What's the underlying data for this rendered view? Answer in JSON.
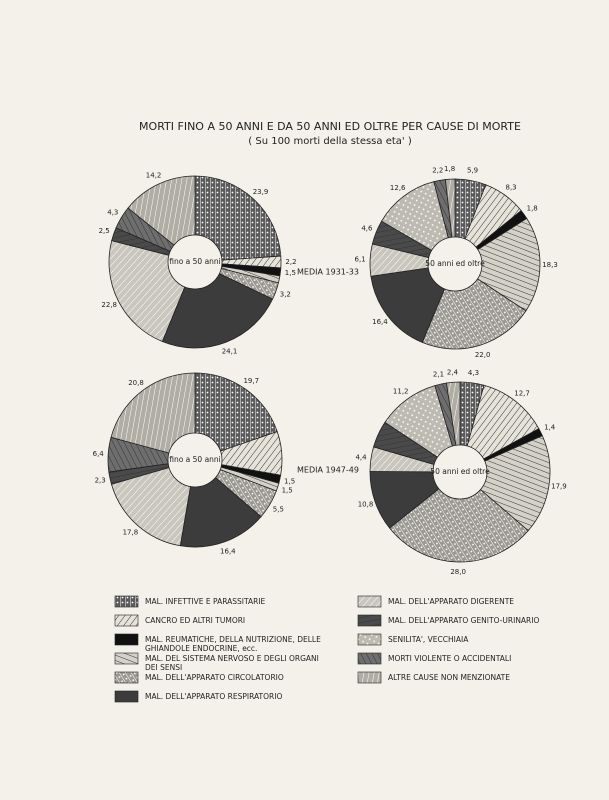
{
  "chart_data": {
    "type": "pie",
    "title": "MORTI FINO A 50 ANNI E DA 50 ANNI ED OLTRE PER CAUSE DI MORTE",
    "subtitle": "( Su 100 morti della stessa eta' )",
    "categories": [
      "fino a 50 anni",
      "50 anni ed oltre",
      "fino a 50 anni",
      "50 anni ed oltre"
    ],
    "periods": [
      "MEDIA 1931-33",
      "MEDIA 1947-49"
    ],
    "series": [
      {
        "name": "MAL. INFETTIVE E PARASSITARIE",
        "color": "#5a5a5a",
        "values": [
          23.9,
          5.9,
          19.7,
          4.3
        ],
        "value_labels": [
          "23,9",
          "5,9",
          "19,7",
          "4,3"
        ]
      },
      {
        "name": "CANCRO ED ALTRI TUMORI",
        "color": "#e6e3da",
        "values": [
          2.2,
          8.3,
          8.1,
          12.7
        ],
        "value_labels": [
          "2,2",
          "8,3",
          null,
          "12,7"
        ]
      },
      {
        "name": "MAL. REUMATICHE, DELLA NUTRIZIONE, DELLE GHIANDOLE ENDOCRINE, ecc.",
        "color": "#111111",
        "values": [
          1.5,
          1.8,
          1.5,
          1.4
        ],
        "value_labels": [
          "1,5",
          "1,8",
          "1,5",
          "1,4"
        ]
      },
      {
        "name": "MAL. DEL SISTEMA NERVOSO E DEGLI ORGANI DEI SENSI",
        "color": "#d4d1c8",
        "values": [
          1.3,
          18.3,
          1.5,
          17.9
        ],
        "value_labels": [
          null,
          "18,3",
          "1,5",
          "17,9"
        ]
      },
      {
        "name": "MAL. DELL'APPARATO CIRCOLATORIO",
        "color": "#9a9890",
        "values": [
          3.2,
          22.0,
          5.5,
          28.0
        ],
        "value_labels": [
          "3,2",
          "22,0",
          "5,5",
          "28,0"
        ]
      },
      {
        "name": "MAL. DELL'APPARATO RESPIRATORIO",
        "color": "#3c3c3c",
        "values": [
          24.1,
          16.4,
          16.4,
          10.8
        ],
        "value_labels": [
          "24,1",
          "16,4",
          "16,4",
          "10,8"
        ]
      },
      {
        "name": "MAL. DELL'APPARATO DIGERENTE",
        "color": "#c9c6bd",
        "values": [
          22.8,
          6.1,
          17.8,
          4.4
        ],
        "value_labels": [
          "22,8",
          "6,1",
          "17,8",
          "4,4"
        ]
      },
      {
        "name": "MAL. DELL'APPARATO GENITO-URINARIO",
        "color": "#4a4a4a",
        "values": [
          2.5,
          4.6,
          2.3,
          4.8
        ],
        "value_labels": [
          "2,5",
          "4,6",
          "2,3",
          null
        ]
      },
      {
        "name": "SENILITA', VECCHIAIA",
        "color": "#bdbab1",
        "values": [
          null,
          12.6,
          null,
          11.2
        ],
        "value_labels": [
          null,
          "12,6",
          null,
          "11,2"
        ]
      },
      {
        "name": "MORTI VIOLENTE O ACCIDENTALI",
        "color": "#6e6e6e",
        "values": [
          4.3,
          2.2,
          6.4,
          2.1
        ],
        "value_labels": [
          "4,3",
          "2,2",
          "6,4",
          "2,1"
        ]
      },
      {
        "name": "ALTRE CAUSE NON MENZIONATE",
        "color": "#b0ada4",
        "values": [
          14.2,
          1.8,
          20.8,
          2.4
        ],
        "value_labels": [
          "14,2",
          "1,8",
          "20,8",
          "2,4"
        ]
      }
    ]
  }
}
